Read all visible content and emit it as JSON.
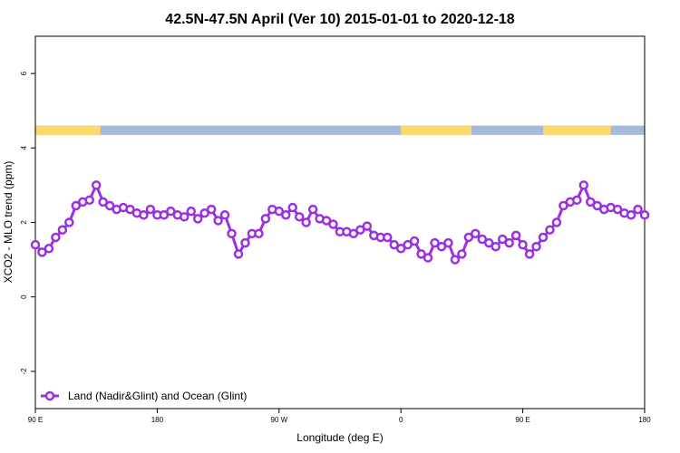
{
  "chart_data": {
    "type": "line",
    "title": "42.5N-47.5N April (Ver 10)   2015-01-01 to 2020-12-18",
    "xlabel": "Longitude (deg E)",
    "ylabel": "XCO2 - MLO trend (ppm)",
    "xlim": [
      0,
      450
    ],
    "ylim": [
      -3,
      7
    ],
    "x_ticks": [
      {
        "value": 0,
        "label": "90 E"
      },
      {
        "value": 90,
        "label": "180"
      },
      {
        "value": 180,
        "label": "90 W"
      },
      {
        "value": 270,
        "label": "0"
      },
      {
        "value": 360,
        "label": "90 E"
      },
      {
        "value": 450,
        "label": "180"
      }
    ],
    "y_ticks": [
      {
        "value": -2,
        "label": "-2"
      },
      {
        "value": 0,
        "label": "0"
      },
      {
        "value": 2,
        "label": "2"
      },
      {
        "value": 4,
        "label": "4"
      },
      {
        "value": 6,
        "label": "6"
      }
    ],
    "land_ocean_strip": {
      "y_range": [
        4.35,
        4.6
      ],
      "land_color": "#fbd96b",
      "ocean_color": "#a6bbdb",
      "land_segments": [
        [
          0,
          48
        ],
        [
          270,
          322
        ],
        [
          375,
          425
        ]
      ]
    },
    "series": [
      {
        "name": "Land (Nadir&Glint) and Ocean (Glint)",
        "color": "#9b30e0",
        "x": [
          0,
          5,
          10,
          15,
          20,
          25,
          30,
          35,
          40,
          45,
          50,
          55,
          60,
          65,
          70,
          75,
          80,
          85,
          90,
          95,
          100,
          105,
          110,
          115,
          120,
          125,
          130,
          135,
          140,
          145,
          150,
          155,
          160,
          165,
          170,
          175,
          180,
          185,
          190,
          195,
          200,
          205,
          210,
          215,
          220,
          225,
          230,
          235,
          240,
          245,
          250,
          255,
          260,
          265,
          270,
          275,
          280,
          285,
          290,
          295,
          300,
          305,
          310,
          315,
          320,
          325,
          330,
          335,
          340,
          345,
          350,
          355,
          360,
          365,
          370,
          375,
          380,
          385,
          390,
          395,
          400,
          405,
          410,
          415,
          420,
          425,
          430,
          435,
          440,
          445,
          450
        ],
        "y": [
          1.4,
          1.2,
          1.3,
          1.6,
          1.8,
          2.0,
          2.45,
          2.55,
          2.6,
          3.0,
          2.55,
          2.45,
          2.35,
          2.4,
          2.35,
          2.25,
          2.2,
          2.35,
          2.2,
          2.2,
          2.3,
          2.2,
          2.15,
          2.3,
          2.1,
          2.25,
          2.35,
          2.05,
          2.2,
          1.7,
          1.15,
          1.45,
          1.7,
          1.7,
          2.1,
          2.35,
          2.3,
          2.2,
          2.4,
          2.15,
          2.0,
          2.35,
          2.1,
          2.05,
          1.95,
          1.75,
          1.75,
          1.7,
          1.8,
          1.9,
          1.65,
          1.6,
          1.6,
          1.4,
          1.3,
          1.4,
          1.5,
          1.15,
          1.05,
          1.45,
          1.35,
          1.45,
          1.0,
          1.15,
          1.6,
          1.7,
          1.55,
          1.45,
          1.35,
          1.55,
          1.45,
          1.65,
          1.4,
          1.15,
          1.35,
          1.6,
          1.8,
          2.0,
          2.45,
          2.55,
          2.6,
          3.0,
          2.55,
          2.45,
          2.35,
          2.4,
          2.35,
          2.25,
          2.2,
          2.35,
          2.2
        ]
      }
    ],
    "legend_position": "bottom-left",
    "grid": false
  }
}
